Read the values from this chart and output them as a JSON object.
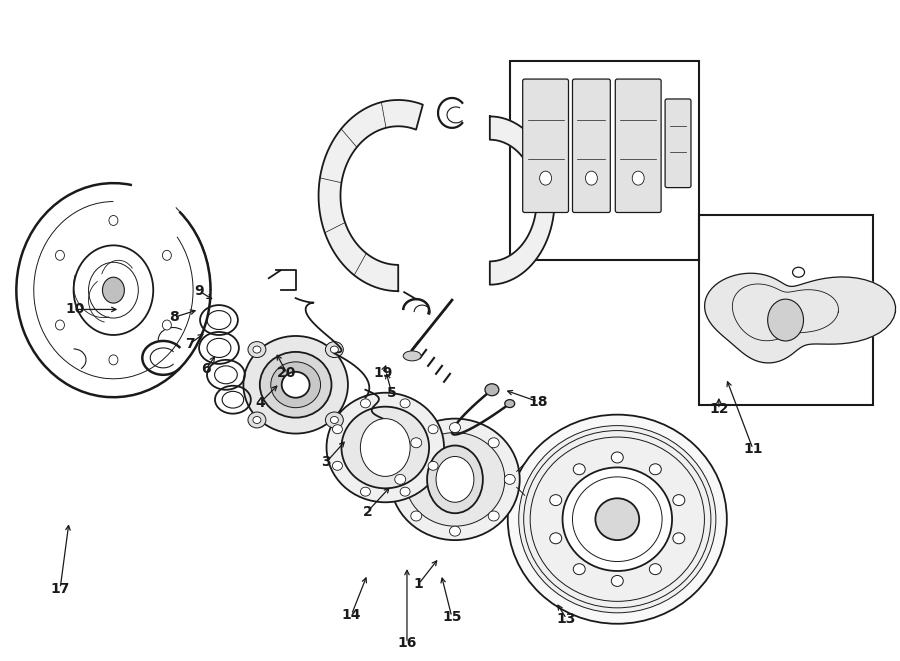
{
  "bg_color": "#ffffff",
  "line_color": "#1a1a1a",
  "fig_width": 9.0,
  "fig_height": 6.61,
  "dpi": 100,
  "labels": {
    "1": [
      0.465,
      0.885,
      0.488,
      0.845
    ],
    "2": [
      0.408,
      0.775,
      0.435,
      0.735
    ],
    "3": [
      0.362,
      0.7,
      0.385,
      0.665
    ],
    "4": [
      0.288,
      0.61,
      0.31,
      0.58
    ],
    "5": [
      0.435,
      0.595,
      0.428,
      0.56
    ],
    "6": [
      0.228,
      0.558,
      0.24,
      0.535
    ],
    "7": [
      0.21,
      0.52,
      0.228,
      0.502
    ],
    "8": [
      0.192,
      0.48,
      0.22,
      0.468
    ],
    "9": [
      0.22,
      0.44,
      0.238,
      0.455
    ],
    "10": [
      0.082,
      0.468,
      0.132,
      0.468
    ],
    "11": [
      0.838,
      0.68,
      0.808,
      0.572
    ],
    "12": [
      0.8,
      0.62,
      0.8,
      0.598
    ],
    "13": [
      0.63,
      0.938,
      0.618,
      0.912
    ],
    "14": [
      0.39,
      0.932,
      0.408,
      0.87
    ],
    "15": [
      0.502,
      0.935,
      0.49,
      0.87
    ],
    "16": [
      0.452,
      0.975,
      0.452,
      0.858
    ],
    "17": [
      0.065,
      0.892,
      0.075,
      0.79
    ],
    "18": [
      0.598,
      0.608,
      0.56,
      0.59
    ],
    "19": [
      0.425,
      0.565,
      0.43,
      0.548
    ],
    "20": [
      0.318,
      0.565,
      0.305,
      0.532
    ]
  }
}
